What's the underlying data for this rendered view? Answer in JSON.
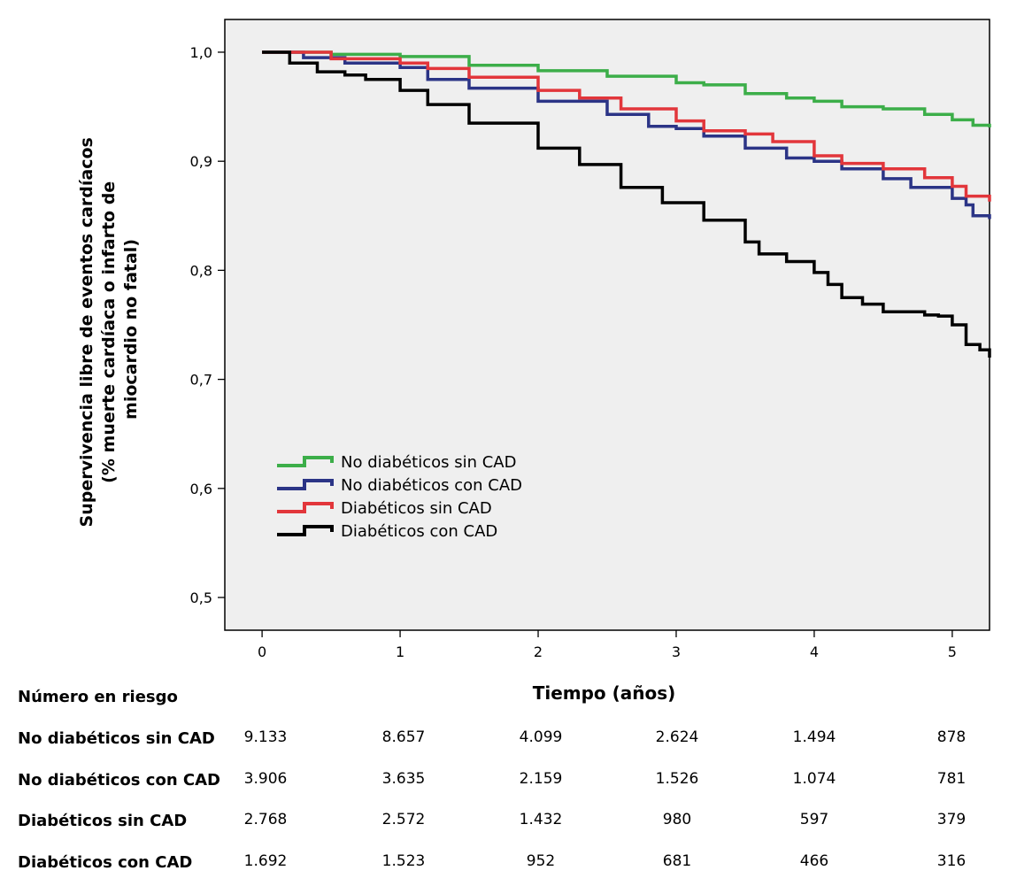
{
  "chart_data": {
    "type": "line",
    "subtype": "kaplan-meier",
    "ylabel_lines": [
      "Supervivencia libre de eventos cardíacos",
      "(% muerte cardíaca o infarto de",
      "miocardio no fatal)"
    ],
    "xlabel": "Tiempo (años)",
    "xlim": [
      -0.27,
      5.27
    ],
    "ylim": [
      0.47,
      1.03
    ],
    "x_ticks": [
      0,
      1,
      2,
      3,
      4,
      5
    ],
    "x_tick_labels": [
      "0",
      "1",
      "2",
      "3",
      "4",
      "5"
    ],
    "y_ticks": [
      0.5,
      0.6,
      0.7,
      0.8,
      0.9,
      1.0
    ],
    "y_tick_labels": [
      "0,5",
      "0,6",
      "0,7",
      "0,8",
      "0,9",
      "1,0"
    ],
    "grid": false,
    "plot_background": "#efefef",
    "legend_position": "lower-left",
    "series": [
      {
        "name": "No diabéticos sin CAD",
        "color": "#3cae49",
        "points": [
          [
            0,
            1.0
          ],
          [
            0.5,
            0.998
          ],
          [
            1.0,
            0.996
          ],
          [
            1.5,
            0.988
          ],
          [
            2.0,
            0.983
          ],
          [
            2.5,
            0.978
          ],
          [
            3.0,
            0.972
          ],
          [
            3.2,
            0.97
          ],
          [
            3.5,
            0.962
          ],
          [
            3.8,
            0.958
          ],
          [
            4.0,
            0.955
          ],
          [
            4.2,
            0.95
          ],
          [
            4.5,
            0.948
          ],
          [
            4.8,
            0.943
          ],
          [
            5.0,
            0.938
          ],
          [
            5.15,
            0.933
          ],
          [
            5.27,
            0.931
          ]
        ]
      },
      {
        "name": "No diabéticos con CAD",
        "color": "#2b3486",
        "points": [
          [
            0,
            1.0
          ],
          [
            0.3,
            0.995
          ],
          [
            0.6,
            0.99
          ],
          [
            1.0,
            0.986
          ],
          [
            1.2,
            0.975
          ],
          [
            1.5,
            0.967
          ],
          [
            2.0,
            0.955
          ],
          [
            2.5,
            0.943
          ],
          [
            2.8,
            0.932
          ],
          [
            3.0,
            0.93
          ],
          [
            3.2,
            0.923
          ],
          [
            3.5,
            0.912
          ],
          [
            3.8,
            0.903
          ],
          [
            4.0,
            0.9
          ],
          [
            4.2,
            0.893
          ],
          [
            4.5,
            0.884
          ],
          [
            4.7,
            0.876
          ],
          [
            5.0,
            0.866
          ],
          [
            5.1,
            0.86
          ],
          [
            5.15,
            0.85
          ],
          [
            5.27,
            0.847
          ]
        ]
      },
      {
        "name": "Diabéticos sin CAD",
        "color": "#e2363b",
        "points": [
          [
            0,
            1.0
          ],
          [
            0.5,
            0.994
          ],
          [
            1.0,
            0.99
          ],
          [
            1.2,
            0.985
          ],
          [
            1.5,
            0.977
          ],
          [
            2.0,
            0.965
          ],
          [
            2.3,
            0.958
          ],
          [
            2.6,
            0.948
          ],
          [
            3.0,
            0.937
          ],
          [
            3.2,
            0.928
          ],
          [
            3.5,
            0.925
          ],
          [
            3.7,
            0.918
          ],
          [
            4.0,
            0.905
          ],
          [
            4.2,
            0.898
          ],
          [
            4.5,
            0.893
          ],
          [
            4.8,
            0.885
          ],
          [
            5.0,
            0.877
          ],
          [
            5.1,
            0.868
          ],
          [
            5.27,
            0.863
          ]
        ]
      },
      {
        "name": "Diabéticos con CAD",
        "color": "#000000",
        "points": [
          [
            0,
            1.0
          ],
          [
            0.2,
            0.99
          ],
          [
            0.4,
            0.982
          ],
          [
            0.6,
            0.979
          ],
          [
            0.75,
            0.975
          ],
          [
            1.0,
            0.965
          ],
          [
            1.2,
            0.952
          ],
          [
            1.5,
            0.935
          ],
          [
            2.0,
            0.912
          ],
          [
            2.3,
            0.897
          ],
          [
            2.6,
            0.876
          ],
          [
            2.9,
            0.862
          ],
          [
            3.2,
            0.846
          ],
          [
            3.5,
            0.826
          ],
          [
            3.6,
            0.815
          ],
          [
            3.8,
            0.808
          ],
          [
            4.0,
            0.798
          ],
          [
            4.1,
            0.787
          ],
          [
            4.2,
            0.775
          ],
          [
            4.35,
            0.769
          ],
          [
            4.5,
            0.762
          ],
          [
            4.8,
            0.759
          ],
          [
            4.9,
            0.758
          ],
          [
            5.0,
            0.75
          ],
          [
            5.1,
            0.732
          ],
          [
            5.2,
            0.727
          ],
          [
            5.27,
            0.72
          ]
        ]
      }
    ]
  },
  "risk_table": {
    "title": "Número en riesgo",
    "rows": [
      {
        "label": "No diabéticos sin CAD",
        "values": [
          "9.133",
          "8.657",
          "4.099",
          "2.624",
          "1.494",
          "878"
        ]
      },
      {
        "label": "No diabéticos con CAD",
        "values": [
          "3.906",
          "3.635",
          "2.159",
          "1.526",
          "1.074",
          "781"
        ]
      },
      {
        "label": "Diabéticos sin CAD",
        "values": [
          "2.768",
          "2.572",
          "1.432",
          "980",
          "597",
          "379"
        ]
      },
      {
        "label": "Diabéticos con CAD",
        "values": [
          "1.692",
          "1.523",
          "952",
          "681",
          "466",
          "316"
        ]
      }
    ]
  }
}
